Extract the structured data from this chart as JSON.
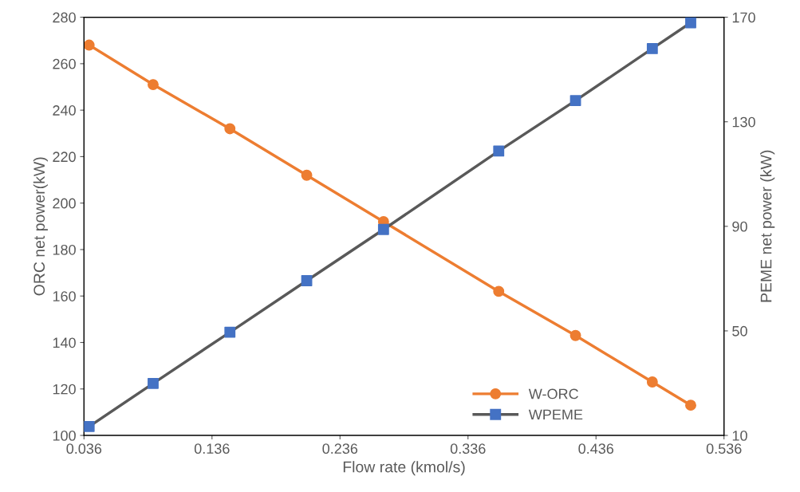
{
  "chart_data": {
    "type": "line",
    "xlabel": "Flow rate (kmol/s)",
    "ylabel": "ORC net power(kW)",
    "y2label": "PEME net power (kW)",
    "x": [
      0.04,
      0.09,
      0.15,
      0.21,
      0.27,
      0.36,
      0.42,
      0.48,
      0.51
    ],
    "series": [
      {
        "name": "W-ORC",
        "color": "#ed7d31",
        "marker": "circle",
        "values": [
          268,
          251,
          232,
          212,
          192,
          162,
          143,
          123,
          113
        ]
      },
      {
        "name": "WPEME",
        "color": "#595959",
        "colors": [
          "#4472c4",
          "#4472c4",
          "#4472c4",
          "#4472c4",
          "#4472c4",
          "#4472c4",
          "#4472c4",
          "#4472c4",
          "#4472c4"
        ],
        "marker": "square",
        "axis": "y2",
        "values": [
          13.4,
          29.9,
          49.5,
          69.2,
          88.8,
          118.8,
          138.1,
          158,
          167.9
        ]
      }
    ],
    "xlim": [
      0.036,
      0.536
    ],
    "xticks": [
      0.036,
      0.136,
      0.236,
      0.336,
      0.436,
      0.536
    ],
    "ylim": [
      100,
      280
    ],
    "yticks": [
      100,
      120,
      140,
      160,
      180,
      200,
      220,
      240,
      260,
      280
    ],
    "y2lim": [
      10,
      170
    ],
    "y2ticks": [
      10,
      50,
      90,
      130,
      170
    ],
    "grid": false,
    "legend": "bottom right",
    "line_style": "solid"
  }
}
